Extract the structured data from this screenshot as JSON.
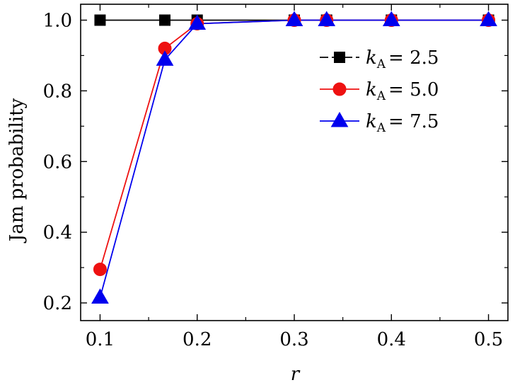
{
  "chart_data": {
    "type": "line",
    "xlabel": "r",
    "ylabel": "Jam  probability",
    "xlim": [
      0.08,
      0.52
    ],
    "ylim": [
      0.15,
      1.045
    ],
    "xticks": [
      0.1,
      0.2,
      0.3,
      0.4,
      0.5
    ],
    "xtick_labels": [
      "0.1",
      "0.2",
      "0.3",
      "0.4",
      "0.5"
    ],
    "yticks": [
      0.2,
      0.4,
      0.6,
      0.8,
      1.0
    ],
    "ytick_labels": [
      "0.2",
      "0.4",
      "0.6",
      "0.8",
      "1.0"
    ],
    "x_minor_step": 0.05,
    "y_minor_step": 0.1,
    "grid": false,
    "legend_position": "top-right",
    "x": [
      0.1,
      0.1667,
      0.2,
      0.3,
      0.3333,
      0.4,
      0.5
    ],
    "series": [
      {
        "name": "k_A = 2.5",
        "k_label": "k",
        "sub_label": "A",
        "value_label": "= 2.5",
        "marker": "square",
        "color": "#000000",
        "values": [
          1.0,
          1.0,
          1.0,
          1.0,
          1.0,
          1.0,
          1.0
        ]
      },
      {
        "name": "k_A = 5.0",
        "k_label": "k",
        "sub_label": "A",
        "value_label": "= 5.0",
        "marker": "circle",
        "color": "#ee1111",
        "values": [
          0.295,
          0.92,
          0.99,
          1.0,
          1.0,
          1.0,
          1.0
        ]
      },
      {
        "name": "k_A = 7.5",
        "k_label": "k",
        "sub_label": "A",
        "value_label": "= 7.5",
        "marker": "triangle",
        "color": "#0000ee",
        "values": [
          0.215,
          0.888,
          0.99,
          1.0,
          1.0,
          1.0,
          1.0
        ]
      }
    ]
  }
}
